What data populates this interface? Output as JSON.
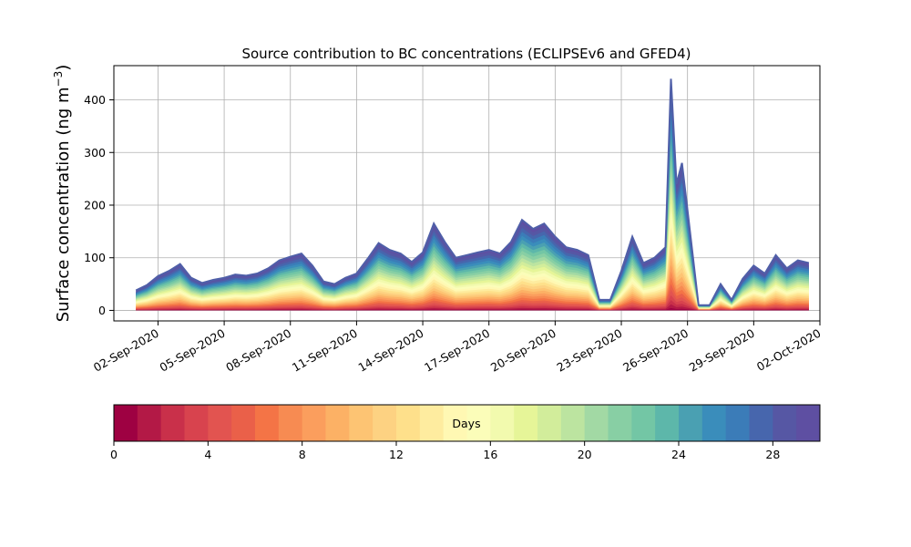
{
  "chart_data": {
    "type": "area",
    "title": "Source contribution to BC concentrations (ECLIPSEv6 and GFED4)",
    "ylabel": "Surface concentration (ng m",
    "ylabel_superscript": "−3",
    "ylabel_close": ")",
    "xlabel": "",
    "stacked": true,
    "x_unit": "date",
    "xlim": [
      "2020-08-31T00:00",
      "2020-10-02T00:00"
    ],
    "ylim": [
      -20,
      465
    ],
    "grid": true,
    "x_tick_labels": [
      "02-Sep-2020",
      "05-Sep-2020",
      "08-Sep-2020",
      "11-Sep-2020",
      "14-Sep-2020",
      "17-Sep-2020",
      "20-Sep-2020",
      "23-Sep-2020",
      "26-Sep-2020",
      "29-Sep-2020",
      "02-Oct-2020"
    ],
    "x_ticks": [
      "2020-09-02",
      "2020-09-05",
      "2020-09-08",
      "2020-09-11",
      "2020-09-14",
      "2020-09-17",
      "2020-09-20",
      "2020-09-23",
      "2020-09-26",
      "2020-09-29",
      "2020-10-02"
    ],
    "y_tick_labels": [
      "0",
      "100",
      "200",
      "300",
      "400"
    ],
    "y_ticks": [
      0,
      100,
      200,
      300,
      400
    ],
    "total_series": {
      "name": "",
      "x": [
        "2020-09-01T00:00",
        "2020-09-01T12:00",
        "2020-09-02T00:00",
        "2020-09-02T12:00",
        "2020-09-03T00:00",
        "2020-09-03T12:00",
        "2020-09-04T00:00",
        "2020-09-04T12:00",
        "2020-09-05T00:00",
        "2020-09-05T12:00",
        "2020-09-06T00:00",
        "2020-09-06T12:00",
        "2020-09-07T00:00",
        "2020-09-07T12:00",
        "2020-09-08T00:00",
        "2020-09-08T12:00",
        "2020-09-09T00:00",
        "2020-09-09T12:00",
        "2020-09-10T00:00",
        "2020-09-10T12:00",
        "2020-09-11T00:00",
        "2020-09-11T12:00",
        "2020-09-12T00:00",
        "2020-09-12T12:00",
        "2020-09-13T00:00",
        "2020-09-13T12:00",
        "2020-09-14T00:00",
        "2020-09-14T12:00",
        "2020-09-15T00:00",
        "2020-09-15T12:00",
        "2020-09-16T00:00",
        "2020-09-16T12:00",
        "2020-09-17T00:00",
        "2020-09-17T12:00",
        "2020-09-18T00:00",
        "2020-09-18T12:00",
        "2020-09-19T00:00",
        "2020-09-19T12:00",
        "2020-09-20T00:00",
        "2020-09-20T12:00",
        "2020-09-21T00:00",
        "2020-09-21T12:00",
        "2020-09-22T00:00",
        "2020-09-22T12:00",
        "2020-09-23T00:00",
        "2020-09-23T12:00",
        "2020-09-24T00:00",
        "2020-09-24T12:00",
        "2020-09-25T00:00",
        "2020-09-25T06:00",
        "2020-09-25T12:00",
        "2020-09-25T18:00",
        "2020-09-26T00:00",
        "2020-09-26T12:00",
        "2020-09-27T00:00",
        "2020-09-27T12:00",
        "2020-09-28T00:00",
        "2020-09-28T12:00",
        "2020-09-29T00:00",
        "2020-09-29T12:00",
        "2020-09-30T00:00",
        "2020-09-30T12:00",
        "2020-10-01T00:00",
        "2020-10-01T12:00"
      ],
      "y": [
        38,
        48,
        65,
        75,
        88,
        62,
        52,
        58,
        62,
        68,
        66,
        70,
        80,
        95,
        102,
        108,
        85,
        55,
        50,
        62,
        70,
        98,
        128,
        115,
        108,
        92,
        110,
        165,
        130,
        100,
        105,
        110,
        115,
        108,
        130,
        172,
        155,
        165,
        140,
        120,
        115,
        105,
        20,
        20,
        75,
        140,
        90,
        100,
        120,
        440,
        240,
        280,
        190,
        10,
        10,
        50,
        20,
        60,
        85,
        70,
        105,
        80,
        95,
        90
      ]
    },
    "colorbar": {
      "label": "Days",
      "min": 0,
      "max": 30,
      "n_bins": 30,
      "tick_labels": [
        "0",
        "4",
        "8",
        "12",
        "16",
        "20",
        "24",
        "28"
      ],
      "ticks": [
        0,
        4,
        8,
        12,
        16,
        20,
        24,
        28
      ],
      "colormap": "Spectral",
      "colors": [
        "#9e0142",
        "#b31946",
        "#c9304a",
        "#d8434e",
        "#e25450",
        "#ea6049",
        "#f47446",
        "#f78b52",
        "#fb9e5d",
        "#fcb165",
        "#fdc473",
        "#fdd282",
        "#fee08b",
        "#feec9f",
        "#fff8b3",
        "#fbfdb9",
        "#f2faae",
        "#e6f598",
        "#d2ed9b",
        "#bce4a0",
        "#a2d9a4",
        "#88cfa4",
        "#73c6a5",
        "#5db7aa",
        "#4aa0b2",
        "#3a8dbb",
        "#3b7cb8",
        "#4766ad",
        "#5657a4",
        "#5e4fa2"
      ]
    }
  }
}
